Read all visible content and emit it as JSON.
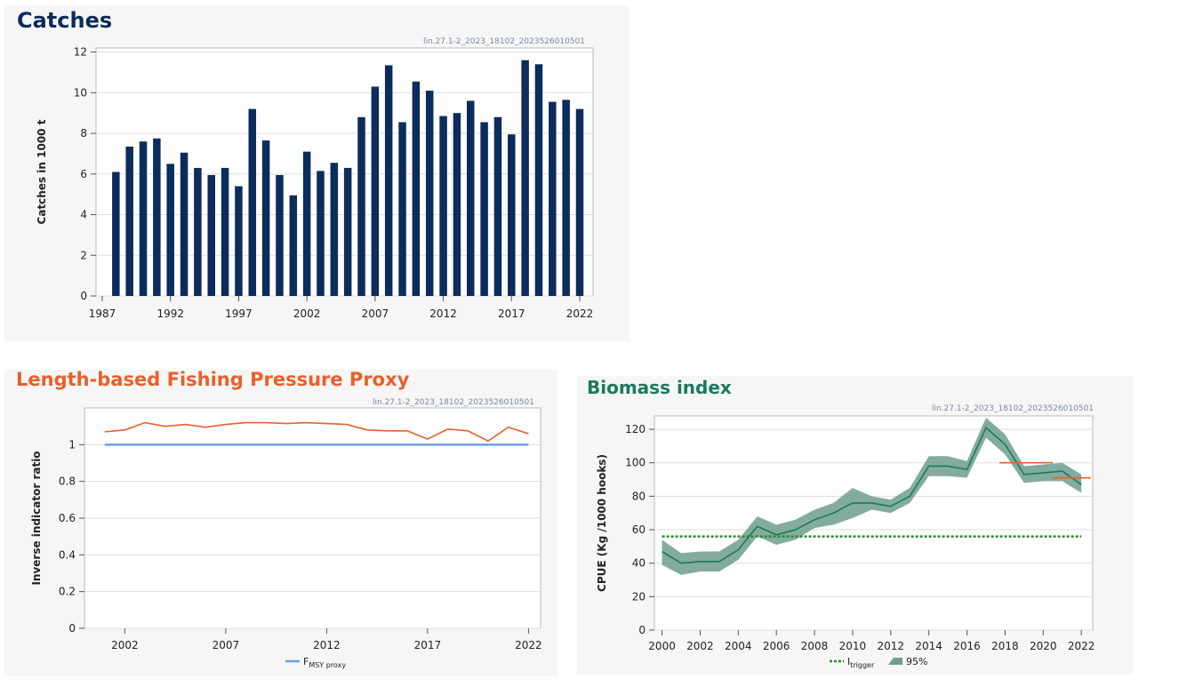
{
  "chart_data": [
    {
      "type": "bar",
      "title": "Catches",
      "ylabel": "Catches in 1000 t",
      "xlabel": "",
      "image_id": "lin.27.1-2_2023_18102_2023526010501",
      "categories": [
        "1988",
        "1989",
        "1990",
        "1991",
        "1992",
        "1993",
        "1994",
        "1995",
        "1996",
        "1997",
        "1998",
        "1999",
        "2000",
        "2001",
        "2002",
        "2003",
        "2004",
        "2005",
        "2006",
        "2007",
        "2008",
        "2009",
        "2010",
        "2011",
        "2012",
        "2013",
        "2014",
        "2015",
        "2016",
        "2017",
        "2018",
        "2019",
        "2020",
        "2021",
        "2022"
      ],
      "values": [
        6.1,
        7.35,
        7.6,
        7.75,
        6.5,
        7.05,
        6.3,
        5.95,
        6.3,
        5.4,
        9.2,
        7.65,
        5.95,
        4.95,
        7.1,
        6.15,
        6.55,
        6.3,
        8.8,
        10.3,
        11.35,
        8.55,
        10.55,
        10.1,
        8.85,
        9.0,
        9.6,
        8.55,
        8.8,
        7.95,
        11.6,
        11.4,
        9.55,
        9.65,
        9.2
      ],
      "x_ticks": [
        "1987",
        "1992",
        "1997",
        "2002",
        "2007",
        "2012",
        "2017",
        "2022"
      ],
      "y_ticks": [
        "0",
        "2",
        "4",
        "6",
        "8",
        "10",
        "12"
      ],
      "ylim": [
        0,
        12.2
      ],
      "grid": "horizontal",
      "colors": {
        "bar": "#0c2c5c",
        "title": "#0c2c5c"
      }
    },
    {
      "type": "line",
      "title": "Length-based Fishing Pressure Proxy",
      "ylabel": "Inverse indicator ratio",
      "xlabel": "",
      "image_id": "lin.27.1-2_2023_18102_2023526010501",
      "x": [
        2001,
        2002,
        2003,
        2004,
        2005,
        2006,
        2007,
        2008,
        2009,
        2010,
        2011,
        2012,
        2013,
        2014,
        2015,
        2016,
        2017,
        2018,
        2019,
        2020,
        2021,
        2022
      ],
      "series": [
        {
          "values": [
            1.07,
            1.08,
            1.12,
            1.1,
            1.11,
            1.095,
            1.11,
            1.12,
            1.12,
            1.115,
            1.12,
            1.115,
            1.11,
            1.08,
            1.075,
            1.075,
            1.03,
            1.085,
            1.075,
            1.02,
            1.095,
            1.06
          ],
          "color": "#e8602c"
        }
      ],
      "reference_lines": [
        {
          "name": "F",
          "subscript": "MSY proxy",
          "value": 1.0,
          "x_range": [
            2001,
            2022
          ],
          "color": "#6a9fef"
        }
      ],
      "x_ticks": [
        "2002",
        "2007",
        "2012",
        "2017",
        "2022"
      ],
      "y_ticks": [
        "0",
        "0.2",
        "0.4",
        "0.6",
        "0.8",
        "1"
      ],
      "xlim": [
        2000.0,
        2022.6
      ],
      "ylim": [
        0,
        1.2
      ],
      "grid": "horizontal",
      "legend": "bottom-center",
      "colors": {
        "title": "#e8602c"
      }
    },
    {
      "type": "line",
      "title": "Biomass index",
      "ylabel": "CPUE (Kg /1000 hooks)",
      "xlabel": "",
      "image_id": "lin.27.1-2_2023_18102_2023526010501",
      "x": [
        2000,
        2001,
        2002,
        2003,
        2004,
        2005,
        2006,
        2007,
        2008,
        2009,
        2010,
        2011,
        2012,
        2013,
        2014,
        2015,
        2016,
        2017,
        2018,
        2019,
        2020,
        2021,
        2022
      ],
      "series": [
        {
          "values": [
            47,
            40,
            41,
            41,
            48,
            62,
            57,
            60,
            66,
            70,
            76,
            76,
            74,
            80,
            98,
            98,
            96,
            121,
            111,
            93,
            94,
            95,
            87
          ],
          "color": "#1b7a5c"
        }
      ],
      "ci_band": {
        "name": "95%",
        "lower": [
          39,
          33,
          35,
          35,
          42,
          56,
          51,
          54,
          61,
          63,
          67,
          72,
          70,
          76,
          92,
          92,
          91,
          115,
          105,
          88,
          89,
          89,
          82
        ],
        "upper": [
          54,
          46,
          47,
          47,
          54,
          68,
          63,
          66,
          72,
          76,
          85,
          80,
          78,
          85,
          104,
          104,
          101,
          127,
          117,
          98,
          99,
          100,
          93
        ],
        "color": "#6e9e8c"
      },
      "reference_lines": [
        {
          "name": "I",
          "subscript": "trigger",
          "value": 56,
          "x_range": [
            2000,
            2022
          ],
          "style": "dotted",
          "color": "#2a8a2a"
        }
      ],
      "segments": [
        {
          "x_range": [
            2017.7,
            2020.5
          ],
          "value": 100,
          "color": "#e8602c"
        },
        {
          "x_range": [
            2020.5,
            2022.5
          ],
          "value": 91,
          "color": "#e8602c"
        }
      ],
      "x_ticks": [
        "2000",
        "2002",
        "2004",
        "2006",
        "2008",
        "2010",
        "2012",
        "2014",
        "2016",
        "2018",
        "2020",
        "2022"
      ],
      "y_ticks": [
        "0",
        "20",
        "40",
        "60",
        "80",
        "100",
        "120"
      ],
      "xlim": [
        1999.6,
        2022.6
      ],
      "ylim": [
        0,
        128
      ],
      "grid": "horizontal",
      "legend": "bottom-center",
      "colors": {
        "title": "#1b7a5c"
      }
    }
  ]
}
